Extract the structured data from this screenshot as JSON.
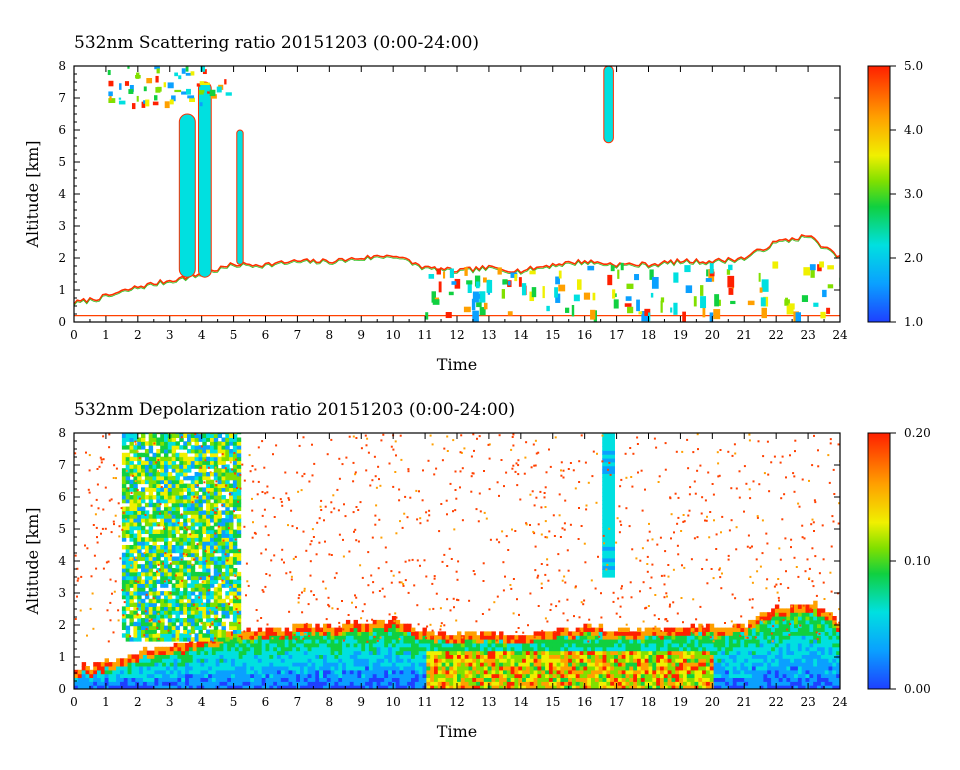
{
  "chart_data": [
    {
      "type": "heatmap",
      "title": "532nm Scattering ratio  20151203 (0:00-24:00)",
      "xlabel": "Time",
      "ylabel": "Altitude [km]",
      "xlim": [
        0,
        24
      ],
      "ylim": [
        0,
        8
      ],
      "x_ticks": [
        "0",
        "1",
        "2",
        "3",
        "4",
        "5",
        "6",
        "7",
        "8",
        "9",
        "10",
        "11",
        "12",
        "13",
        "14",
        "15",
        "16",
        "17",
        "18",
        "19",
        "20",
        "21",
        "22",
        "23",
        "24"
      ],
      "y_ticks": [
        "0",
        "1",
        "2",
        "3",
        "4",
        "5",
        "6",
        "7",
        "8"
      ],
      "colorbar": {
        "min": 1.0,
        "max": 5.0,
        "ticks": [
          "1.0",
          "2.0",
          "3.0",
          "4.0",
          "5.0"
        ]
      },
      "features": {
        "boundary_layer_top_km": [
          {
            "t": 0,
            "z": 0.6
          },
          {
            "t": 1,
            "z": 0.8
          },
          {
            "t": 2,
            "z": 1.1
          },
          {
            "t": 3,
            "z": 1.3
          },
          {
            "t": 4,
            "z": 1.5
          },
          {
            "t": 5,
            "z": 1.8
          },
          {
            "t": 6,
            "z": 1.8
          },
          {
            "t": 7,
            "z": 1.9
          },
          {
            "t": 8,
            "z": 1.9
          },
          {
            "t": 9,
            "z": 2.0
          },
          {
            "t": 10,
            "z": 2.1
          },
          {
            "t": 11,
            "z": 1.7
          },
          {
            "t": 12,
            "z": 1.6
          },
          {
            "t": 13,
            "z": 1.7
          },
          {
            "t": 14,
            "z": 1.6
          },
          {
            "t": 15,
            "z": 1.8
          },
          {
            "t": 16,
            "z": 1.9
          },
          {
            "t": 17,
            "z": 1.8
          },
          {
            "t": 18,
            "z": 1.8
          },
          {
            "t": 19,
            "z": 1.9
          },
          {
            "t": 20,
            "z": 1.9
          },
          {
            "t": 21,
            "z": 2.0
          },
          {
            "t": 22,
            "z": 2.5
          },
          {
            "t": 23,
            "z": 2.7
          },
          {
            "t": 24,
            "z": 2.0
          }
        ],
        "cloud_columns": [
          {
            "t_start": 3.3,
            "t_end": 3.8,
            "z_bottom": 1.4,
            "z_top": 6.5,
            "value": 2.0
          },
          {
            "t_start": 3.9,
            "t_end": 4.3,
            "z_bottom": 1.4,
            "z_top": 7.5,
            "value": 2.0
          },
          {
            "t_start": 5.1,
            "t_end": 5.3,
            "z_bottom": 1.8,
            "z_top": 6.0,
            "value": 2.2
          },
          {
            "t_start": 16.6,
            "t_end": 16.9,
            "z_bottom": 5.6,
            "z_top": 8.0,
            "value": 2.3
          }
        ]
      }
    },
    {
      "type": "heatmap",
      "title": "532nm Depolarization ratio  20151203 (0:00-24:00)",
      "xlabel": "Time",
      "ylabel": "Altitude [km]",
      "xlim": [
        0,
        24
      ],
      "ylim": [
        0,
        8
      ],
      "x_ticks": [
        "0",
        "1",
        "2",
        "3",
        "4",
        "5",
        "6",
        "7",
        "8",
        "9",
        "10",
        "11",
        "12",
        "13",
        "14",
        "15",
        "16",
        "17",
        "18",
        "19",
        "20",
        "21",
        "22",
        "23",
        "24"
      ],
      "y_ticks": [
        "0",
        "1",
        "2",
        "3",
        "4",
        "5",
        "6",
        "7",
        "8"
      ],
      "colorbar": {
        "min": 0.0,
        "max": 0.2,
        "ticks": [
          "0.00",
          "0.10",
          "0.20"
        ]
      }
    }
  ]
}
